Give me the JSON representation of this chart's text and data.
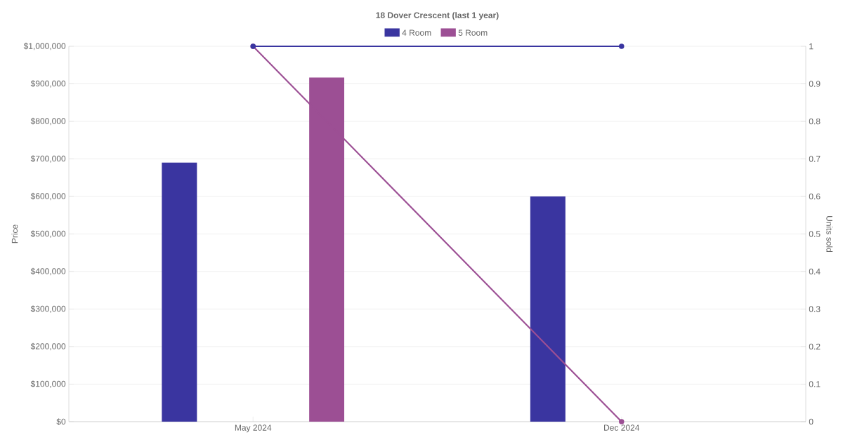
{
  "chart_data": {
    "type": "bar",
    "title": "18 Dover Crescent (last 1 year)",
    "ylabel": "Price",
    "y2label": "Units sold",
    "categories": [
      "May 2024",
      "Dec 2024"
    ],
    "series": [
      {
        "name": "4 Room",
        "color": "#3a35a0",
        "values": [
          690000,
          600000
        ]
      },
      {
        "name": "5 Room",
        "color": "#9c4f94",
        "values": [
          917000,
          null
        ]
      },
      {
        "type": "line",
        "axis": "y2",
        "color": "#3a35a0",
        "values": [
          1,
          1
        ]
      },
      {
        "type": "line",
        "axis": "y2",
        "color": "#9c4f94",
        "values": [
          1,
          0
        ]
      }
    ],
    "ylim": [
      0,
      1000000
    ],
    "yticks": [
      {
        "value": 0,
        "label": "$0"
      },
      {
        "value": 100000,
        "label": "$100,000"
      },
      {
        "value": 200000,
        "label": "$200,000"
      },
      {
        "value": 300000,
        "label": "$300,000"
      },
      {
        "value": 400000,
        "label": "$400,000"
      },
      {
        "value": 500000,
        "label": "$500,000"
      },
      {
        "value": 600000,
        "label": "$600,000"
      },
      {
        "value": 700000,
        "label": "$700,000"
      },
      {
        "value": 800000,
        "label": "$800,000"
      },
      {
        "value": 900000,
        "label": "$900,000"
      },
      {
        "value": 1000000,
        "label": "$1,000,000"
      }
    ],
    "y2lim": [
      0,
      1
    ],
    "y2ticks": [
      0,
      0.1,
      0.2,
      0.3,
      0.4,
      0.5,
      0.6,
      0.7,
      0.8,
      0.9,
      1
    ],
    "grid": "y",
    "legend": "top",
    "marker": "circle",
    "line_style": "solid"
  }
}
